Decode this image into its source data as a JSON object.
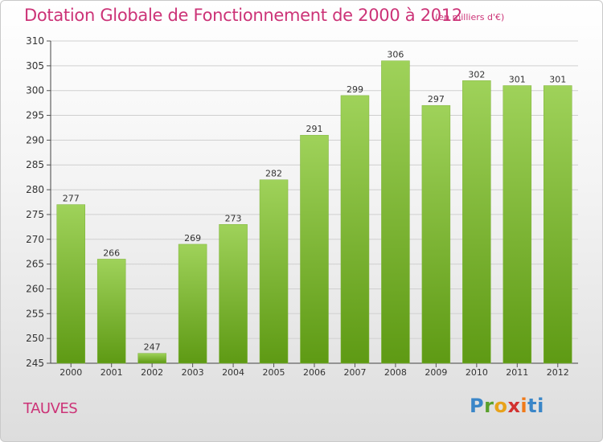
{
  "title": "Dotation Globale de Fonctionnement de 2000 à 2012",
  "unit_note": "(en milliers d'€)",
  "commune": "TAUVES",
  "logo": {
    "text": "Proxiti",
    "colors": [
      "#3a86c8",
      "#5aa02c",
      "#e8a21a",
      "#d2312f",
      "#f07a1a",
      "#3a86c8"
    ]
  },
  "colors": {
    "title": "#cc3377",
    "bar_top": "#9fd25a",
    "bar_bottom": "#5e9a14",
    "label": "#333333"
  },
  "chart_data": {
    "type": "bar",
    "categories": [
      "2000",
      "2001",
      "2002",
      "2003",
      "2004",
      "2005",
      "2006",
      "2007",
      "2008",
      "2009",
      "2010",
      "2011",
      "2012"
    ],
    "values": [
      277,
      266,
      247,
      269,
      273,
      282,
      291,
      299,
      306,
      297,
      302,
      301,
      301
    ],
    "ylim": [
      245,
      310
    ],
    "yticks": [
      245,
      250,
      255,
      260,
      265,
      270,
      275,
      280,
      285,
      290,
      295,
      300,
      305,
      310
    ],
    "grid": true,
    "xlabel": "",
    "ylabel": ""
  }
}
